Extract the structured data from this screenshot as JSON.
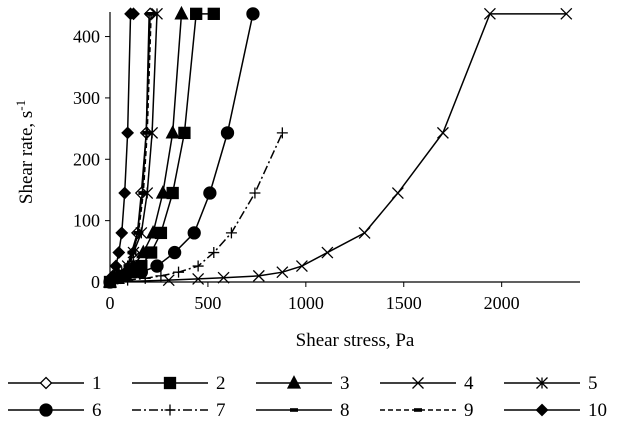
{
  "chart_data": {
    "type": "line",
    "title": "",
    "xlabel": "Shear stress, Pa",
    "ylabel": "Shear rate, s",
    "ylabel_sup": "-1",
    "xlim": [
      0,
      2400
    ],
    "ylim": [
      0,
      440
    ],
    "xticks": [
      "0",
      "500",
      "1000",
      "1500",
      "2000"
    ],
    "yticks": [
      "0",
      "100",
      "200",
      "300",
      "400"
    ],
    "grid": false,
    "legend_position": "bottom",
    "series": [
      {
        "name": "1",
        "color": "#000000",
        "marker": "diamond-open",
        "dash": "solid",
        "x": [
          0,
          20,
          40,
          60,
          80,
          100,
          120,
          140,
          160,
          185,
          205
        ],
        "y": [
          0,
          3,
          6,
          10,
          16,
          26,
          48,
          80,
          145,
          243,
          437
        ]
      },
      {
        "name": "2",
        "color": "#000000",
        "marker": "square",
        "dash": "solid",
        "x": [
          0,
          60,
          110,
          160,
          210,
          260,
          320,
          380,
          440,
          530
        ],
        "y": [
          0,
          10,
          16,
          26,
          48,
          80,
          145,
          243,
          437,
          437
        ]
      },
      {
        "name": "3",
        "color": "#000000",
        "marker": "triangle",
        "dash": "solid",
        "x": [
          0,
          40,
          80,
          120,
          170,
          220,
          270,
          320,
          365
        ],
        "y": [
          0,
          6,
          16,
          26,
          48,
          80,
          145,
          243,
          437
        ]
      },
      {
        "name": "4",
        "color": "#000000",
        "marker": "x",
        "dash": "solid",
        "x": [
          0,
          300,
          450,
          580,
          760,
          880,
          980,
          1110,
          1300,
          1470,
          1700,
          1940,
          2330
        ],
        "y": [
          0,
          3,
          5,
          7,
          10,
          16,
          26,
          48,
          80,
          145,
          243,
          437,
          437
        ]
      },
      {
        "name": "5",
        "color": "#000000",
        "marker": "asterisk",
        "dash": "solid",
        "x": [
          0,
          30,
          60,
          90,
          120,
          160,
          190,
          215,
          240
        ],
        "y": [
          0,
          6,
          16,
          26,
          48,
          80,
          145,
          243,
          437
        ]
      },
      {
        "name": "6",
        "color": "#000000",
        "marker": "circle",
        "dash": "solid",
        "x": [
          0,
          80,
          160,
          240,
          330,
          430,
          510,
          600,
          730
        ],
        "y": [
          0,
          10,
          16,
          26,
          48,
          80,
          145,
          243,
          437
        ]
      },
      {
        "name": "7",
        "color": "#000000",
        "marker": "plus",
        "dash": "dashdot",
        "x": [
          0,
          90,
          180,
          260,
          350,
          450,
          530,
          620,
          740,
          880
        ],
        "y": [
          0,
          3,
          6,
          10,
          16,
          26,
          48,
          80,
          145,
          243
        ]
      },
      {
        "name": "8",
        "color": "#000000",
        "marker": "dash",
        "dash": "solid",
        "x": [
          0,
          30,
          60,
          90,
          110,
          140,
          165,
          185,
          200
        ],
        "y": [
          0,
          6,
          16,
          26,
          48,
          80,
          145,
          243,
          437
        ]
      },
      {
        "name": "9",
        "color": "#000000",
        "marker": "dash",
        "dash": "dashed",
        "x": [
          0,
          30,
          60,
          90,
          115,
          145,
          170,
          190,
          210
        ],
        "y": [
          0,
          6,
          16,
          26,
          48,
          80,
          145,
          243,
          437
        ]
      },
      {
        "name": "10",
        "color": "#000000",
        "marker": "diamond",
        "dash": "solid",
        "x": [
          0,
          15,
          30,
          45,
          60,
          75,
          90,
          105,
          120
        ],
        "y": [
          0,
          10,
          26,
          48,
          80,
          145,
          243,
          437,
          437
        ]
      }
    ]
  }
}
